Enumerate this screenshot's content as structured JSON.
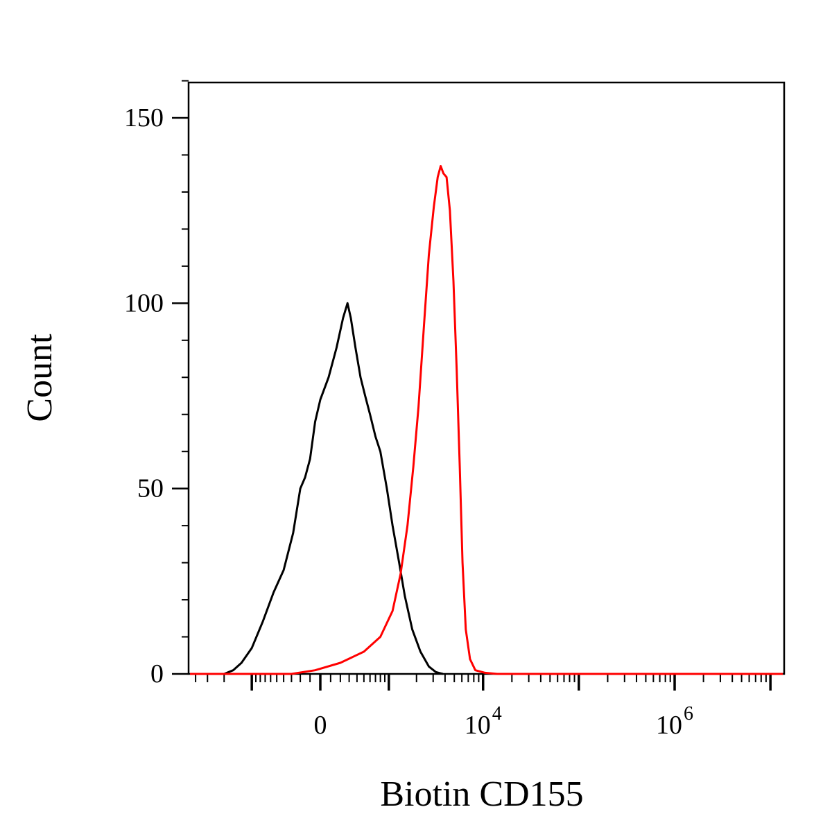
{
  "chart_data": {
    "type": "line",
    "title": "",
    "xlabel": "Biotin CD155",
    "ylabel": "Count",
    "x_scale": "biexponential",
    "ylim": [
      0,
      160
    ],
    "grid": false,
    "legend": "none",
    "x_ticks": [
      {
        "base": "0",
        "sup": ""
      },
      {
        "base": "10",
        "sup": "4"
      },
      {
        "base": "10",
        "sup": "6"
      }
    ],
    "y_ticks": [
      {
        "value": 0,
        "label": "0"
      },
      {
        "value": 50,
        "label": "50"
      },
      {
        "value": 100,
        "label": "100"
      },
      {
        "value": 150,
        "label": "150"
      }
    ],
    "y_minor_step": 10,
    "series": [
      {
        "color": "#000000",
        "points": [
          [
            -2000,
            0
          ],
          [
            -1600,
            1
          ],
          [
            -1300,
            3
          ],
          [
            -1000,
            7
          ],
          [
            -750,
            14
          ],
          [
            -550,
            22
          ],
          [
            -400,
            28
          ],
          [
            -280,
            38
          ],
          [
            -200,
            50
          ],
          [
            -150,
            53
          ],
          [
            -100,
            58
          ],
          [
            -50,
            68
          ],
          [
            0,
            74
          ],
          [
            80,
            80
          ],
          [
            160,
            88
          ],
          [
            230,
            96
          ],
          [
            280,
            100
          ],
          [
            320,
            96
          ],
          [
            380,
            88
          ],
          [
            450,
            80
          ],
          [
            520,
            75
          ],
          [
            600,
            70
          ],
          [
            700,
            64
          ],
          [
            800,
            60
          ],
          [
            950,
            50
          ],
          [
            1100,
            40
          ],
          [
            1300,
            30
          ],
          [
            1500,
            21
          ],
          [
            1800,
            12
          ],
          [
            2200,
            6
          ],
          [
            2700,
            2
          ],
          [
            3200,
            0.5
          ],
          [
            3800,
            0
          ]
        ]
      },
      {
        "color": "#ff0000",
        "points": [
          [
            -5000,
            0
          ],
          [
            -3000,
            0
          ],
          [
            -300,
            0
          ],
          [
            -50,
            1
          ],
          [
            200,
            3
          ],
          [
            500,
            6
          ],
          [
            800,
            10
          ],
          [
            1100,
            17
          ],
          [
            1350,
            27
          ],
          [
            1600,
            40
          ],
          [
            1850,
            56
          ],
          [
            2100,
            72
          ],
          [
            2400,
            94
          ],
          [
            2700,
            113
          ],
          [
            3050,
            126
          ],
          [
            3350,
            134
          ],
          [
            3600,
            137
          ],
          [
            3850,
            135
          ],
          [
            4150,
            134
          ],
          [
            4500,
            125
          ],
          [
            4900,
            106
          ],
          [
            5300,
            82
          ],
          [
            5700,
            56
          ],
          [
            6100,
            30
          ],
          [
            6600,
            12
          ],
          [
            7300,
            4
          ],
          [
            8300,
            1
          ],
          [
            10500,
            0.3
          ],
          [
            14000,
            0
          ],
          [
            1000000,
            0
          ],
          [
            20000000,
            0
          ]
        ]
      }
    ]
  }
}
